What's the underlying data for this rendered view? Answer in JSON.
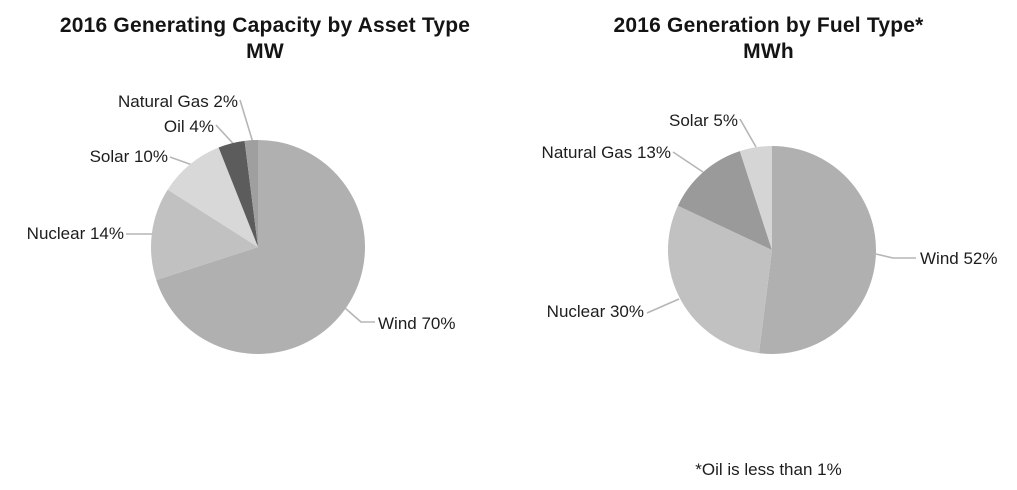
{
  "footnote": "*Oil is less than 1%",
  "chart_data": [
    {
      "type": "pie",
      "title": "2016 Generating Capacity by Asset Type",
      "ylabel": "MW",
      "legend_position": "outside-labels-with-leader-lines",
      "slice_order": "clockwise from 12 o'clock, descending by value",
      "slices": [
        {
          "name": "Wind",
          "value_pct": 70,
          "label": "Wind 70%",
          "color": "#b0b0b0"
        },
        {
          "name": "Nuclear",
          "value_pct": 14,
          "label": "Nuclear 14%",
          "color": "#c1c1c1"
        },
        {
          "name": "Solar",
          "value_pct": 10,
          "label": "Solar 10%",
          "color": "#d8d8d8"
        },
        {
          "name": "Oil",
          "value_pct": 4,
          "label": "Oil 4%",
          "color": "#5c5c5c"
        },
        {
          "name": "Natural Gas",
          "value_pct": 2,
          "label": "Natural Gas 2%",
          "color": "#9f9f9f"
        }
      ]
    },
    {
      "type": "pie",
      "title": "2016 Generation by Fuel Type*",
      "ylabel": "MWh",
      "legend_position": "outside-labels-with-leader-lines",
      "slice_order": "clockwise from 12 o'clock, descending by value",
      "footnote": "*Oil is less than 1%",
      "slices": [
        {
          "name": "Wind",
          "value_pct": 52,
          "label": "Wind 52%",
          "color": "#b0b0b0"
        },
        {
          "name": "Nuclear",
          "value_pct": 30,
          "label": "Nuclear 30%",
          "color": "#c1c1c1"
        },
        {
          "name": "Natural Gas",
          "value_pct": 13,
          "label": "Natural Gas 13%",
          "color": "#9a9a9a"
        },
        {
          "name": "Solar",
          "value_pct": 5,
          "label": "Solar 5%",
          "color": "#d5d5d5"
        }
      ]
    }
  ]
}
